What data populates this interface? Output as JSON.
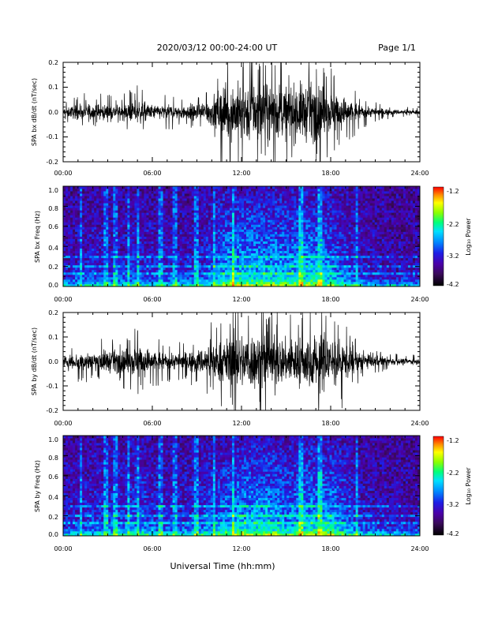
{
  "header": {
    "title": "2020/03/12  00:00-24:00 UT",
    "page": "Page 1/1"
  },
  "footer": {
    "xlabel": "Universal Time (hh:mm)"
  },
  "colors": {
    "trace": "#000000",
    "colormap": [
      "#000000",
      "#3a0a5a",
      "#4b00a8",
      "#1e1ee6",
      "#0088ff",
      "#00e0ff",
      "#00ff7a",
      "#8cff00",
      "#ffff00",
      "#ff8c00",
      "#ff0000"
    ]
  },
  "chart_data": [
    {
      "type": "line",
      "panel": "bx-waveform",
      "ylabel": "SPA bx dB/dt (nT/sec)",
      "xlim": [
        0,
        24
      ],
      "ylim": [
        -0.2,
        0.2
      ],
      "x_ticks": [
        "00:00",
        "06:00",
        "12:00",
        "18:00",
        "24:00"
      ],
      "y_ticks": [
        "-0.2",
        "-0.1",
        "0.0",
        "0.1",
        "0.2"
      ],
      "envelope": {
        "hours": [
          0,
          1,
          2,
          3,
          4,
          5,
          6,
          7,
          8,
          9,
          10,
          11,
          12,
          13,
          14,
          15,
          16,
          17,
          18,
          19,
          20,
          21,
          22,
          23,
          24
        ],
        "amplitude": [
          0.03,
          0.05,
          0.06,
          0.05,
          0.05,
          0.08,
          0.05,
          0.05,
          0.05,
          0.06,
          0.1,
          0.2,
          0.2,
          0.2,
          0.2,
          0.18,
          0.2,
          0.2,
          0.15,
          0.1,
          0.05,
          0.03,
          0.02,
          0.015,
          0.015
        ]
      }
    },
    {
      "type": "heatmap",
      "panel": "bx-spectrogram",
      "ylabel": "SPA bx Freq (Hz)",
      "xlim": [
        0,
        24
      ],
      "ylim": [
        0,
        1
      ],
      "x_ticks": [
        "00:00",
        "06:00",
        "12:00",
        "18:00",
        "24:00"
      ],
      "y_ticks": [
        "0.0",
        "0.2",
        "0.4",
        "0.6",
        "0.8",
        "1.0"
      ],
      "colorbar": {
        "label": "Log₁₀ Power",
        "range": [
          -4.2,
          -1.2
        ],
        "ticks": [
          "-1.2",
          "-2.2",
          "-3.2",
          "-4.2"
        ]
      }
    },
    {
      "type": "line",
      "panel": "by-waveform",
      "ylabel": "SPA by dB/dt (nT/sec)",
      "xlim": [
        0,
        24
      ],
      "ylim": [
        -0.2,
        0.2
      ],
      "x_ticks": [
        "00:00",
        "06:00",
        "12:00",
        "18:00",
        "24:00"
      ],
      "y_ticks": [
        "-0.2",
        "-0.1",
        "0.0",
        "0.1",
        "0.2"
      ],
      "envelope": {
        "hours": [
          0,
          1,
          2,
          3,
          4,
          5,
          6,
          7,
          8,
          9,
          10,
          11,
          12,
          13,
          14,
          15,
          16,
          17,
          18,
          19,
          20,
          21,
          22,
          23,
          24
        ],
        "amplitude": [
          0.04,
          0.06,
          0.07,
          0.08,
          0.08,
          0.12,
          0.08,
          0.06,
          0.06,
          0.08,
          0.12,
          0.16,
          0.2,
          0.2,
          0.2,
          0.15,
          0.18,
          0.2,
          0.2,
          0.12,
          0.06,
          0.04,
          0.03,
          0.02,
          0.02
        ]
      }
    },
    {
      "type": "heatmap",
      "panel": "by-spectrogram",
      "ylabel": "SPA by Freq (Hz)",
      "xlim": [
        0,
        24
      ],
      "ylim": [
        0,
        1
      ],
      "x_ticks": [
        "00:00",
        "06:00",
        "12:00",
        "18:00",
        "24:00"
      ],
      "y_ticks": [
        "0.0",
        "0.2",
        "0.4",
        "0.6",
        "0.8",
        "1.0"
      ],
      "colorbar": {
        "label": "Log₁₀ Power",
        "range": [
          -4.2,
          -1.2
        ],
        "ticks": [
          "-1.2",
          "-2.2",
          "-3.2",
          "-4.2"
        ]
      }
    }
  ]
}
